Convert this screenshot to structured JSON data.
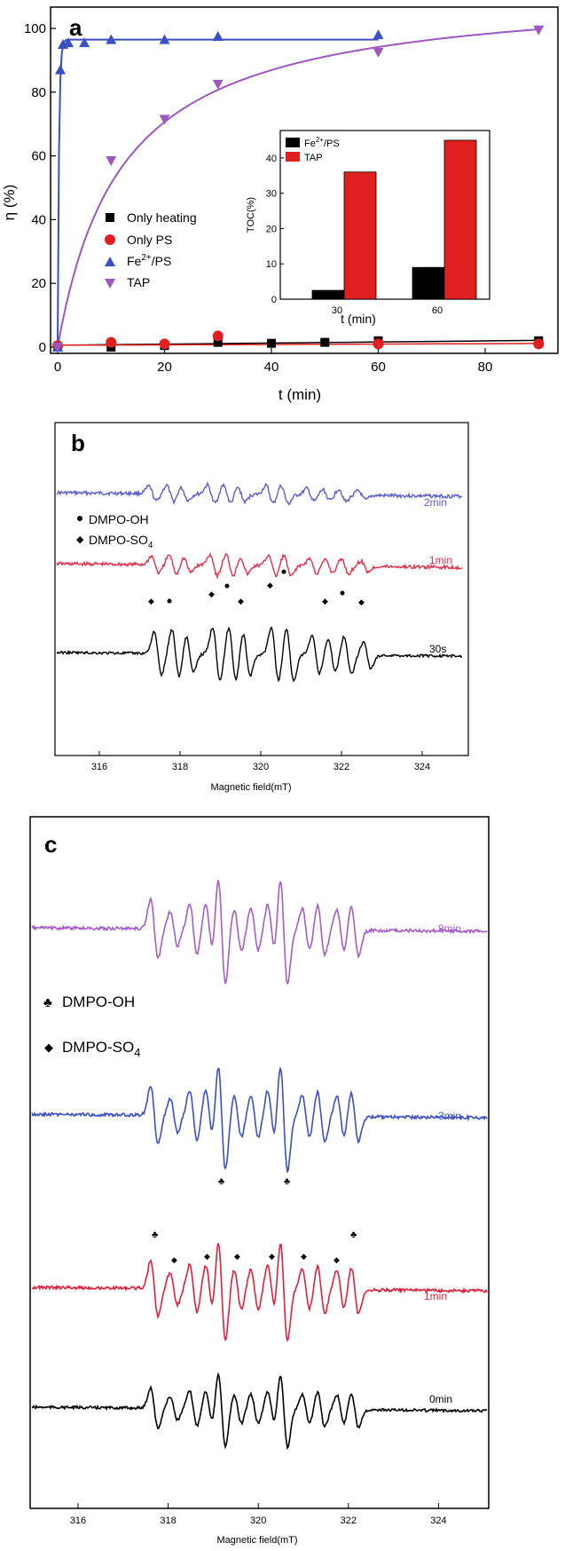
{
  "chart_data": [
    {
      "panel_label": "a",
      "type": "scatter",
      "xlabel": "t (min)",
      "ylabel": "η (%)",
      "xlim": [
        -2,
        92
      ],
      "ylim": [
        -2,
        105
      ],
      "xticks": [
        "0",
        "20",
        "40",
        "60",
        "80"
      ],
      "yticks": [
        "0",
        "20",
        "40",
        "60",
        "80",
        "100"
      ],
      "legend_position": "center-left",
      "series": [
        {
          "name": "Only heating",
          "color": "#000000",
          "marker": "square",
          "x": [
            0,
            10,
            20,
            30,
            40,
            50,
            60,
            90
          ],
          "y": [
            0,
            0,
            0.5,
            1.5,
            1.2,
            1.5,
            2,
            2
          ]
        },
        {
          "name": "Only PS",
          "color": "#e02020",
          "marker": "circle",
          "x": [
            0,
            10,
            20,
            30,
            60,
            90
          ],
          "y": [
            0.5,
            1.5,
            1,
            3.5,
            1,
            1
          ]
        },
        {
          "name": "Fe2+/PS",
          "color": "#3a4fc4",
          "marker": "triangle-up",
          "x": [
            0,
            0.5,
            1,
            2,
            5,
            10,
            20,
            30,
            60
          ],
          "y": [
            0,
            87,
            95,
            95.5,
            95.5,
            96.5,
            96.5,
            97.5,
            98
          ]
        },
        {
          "name": "TAP",
          "color": "#9b59c0",
          "marker": "triangle-down",
          "x": [
            0,
            10,
            20,
            30,
            60,
            90
          ],
          "y": [
            0,
            58.5,
            71.5,
            82.5,
            92.5,
            99.5
          ]
        }
      ],
      "inset": {
        "type": "bar",
        "xlabel": "t (min)",
        "ylabel": "TOC(%)",
        "categories": [
          "30",
          "60"
        ],
        "ylim": [
          0,
          47
        ],
        "yticks": [
          "0",
          "10",
          "20",
          "30",
          "40"
        ],
        "series": [
          {
            "name": "Fe2+/PS",
            "color": "#000000",
            "values": [
              2.5,
              9
            ]
          },
          {
            "name": "TAP",
            "color": "#e02020",
            "values": [
              36,
              45
            ]
          }
        ]
      }
    },
    {
      "panel_label": "b",
      "type": "line",
      "xlabel": "Magnetic field(mT)",
      "xlim": [
        315,
        325
      ],
      "xticks": [
        "316",
        "318",
        "320",
        "322",
        "324"
      ],
      "legend": [
        "DMPO-OH",
        "DMPO-SO4"
      ],
      "series": [
        {
          "name": "2min",
          "color": "#5a5fc8"
        },
        {
          "name": "1min",
          "color": "#e0304a"
        },
        {
          "name": "30s",
          "color": "#000000"
        }
      ]
    },
    {
      "panel_label": "c",
      "type": "line",
      "xlabel": "Magnetic field(mT)",
      "xlim": [
        315,
        325
      ],
      "xticks": [
        "316",
        "318",
        "320",
        "322",
        "324"
      ],
      "legend": [
        "DMPO-OH",
        "DMPO-SO4"
      ],
      "series": [
        {
          "name": "8min",
          "color": "#a35cc8"
        },
        {
          "name": "3min",
          "color": "#3c4fc0"
        },
        {
          "name": "1min",
          "color": "#e0203a"
        },
        {
          "name": "0min",
          "color": "#000000"
        }
      ]
    }
  ],
  "legend_text": {
    "a": {
      "heating": "Only heating",
      "ps": "Only PS",
      "fe_pre": "Fe",
      "fe_sup": "2+",
      "fe_post": "/PS",
      "tap": "TAP"
    },
    "inset": {
      "fe_pre": "Fe",
      "fe_sup": "2+",
      "fe_post": "/PS",
      "tap": "TAP"
    },
    "esr": {
      "oh": "DMPO-OH",
      "so4_pre": "DMPO-SO",
      "so4_sub": "4"
    }
  }
}
